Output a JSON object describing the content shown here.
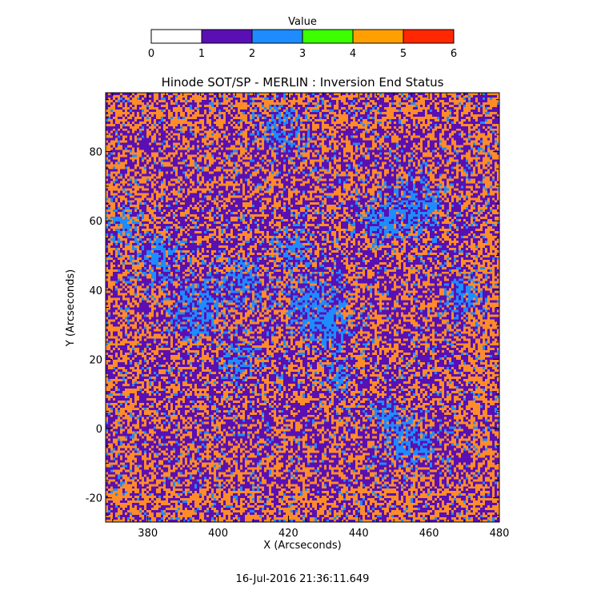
{
  "colorbar": {
    "title": "Value",
    "ticks": [
      0,
      1,
      2,
      3,
      4,
      5,
      6
    ],
    "segments": [
      {
        "from": 0,
        "to": 1,
        "color": "#ffffff"
      },
      {
        "from": 1,
        "to": 2,
        "color": "#5a0fb4"
      },
      {
        "from": 2,
        "to": 3,
        "color": "#1e8cff"
      },
      {
        "from": 3,
        "to": 4,
        "color": "#3cff00"
      },
      {
        "from": 4,
        "to": 5,
        "color": "#ffa000"
      },
      {
        "from": 5,
        "to": 6,
        "color": "#ff2800"
      }
    ]
  },
  "chart_data": {
    "type": "heatmap",
    "title": "Hinode SOT/SP - MERLIN : Inversion End Status",
    "xlabel": "X (Arcseconds)",
    "ylabel": "Y (Arcseconds)",
    "xlim": [
      368,
      480
    ],
    "ylim": [
      -27,
      97
    ],
    "xticks": [
      380,
      400,
      420,
      440,
      460,
      480
    ],
    "yticks": [
      -20,
      0,
      20,
      40,
      60,
      80
    ],
    "values_present": [
      1,
      2,
      4
    ],
    "value_colors": {
      "1": "#5a0fb4",
      "2": "#1e8cff",
      "4": "#ff8c28"
    },
    "grid": false
  },
  "footer": {
    "timestamp": "16-Jul-2016 21:36:11.649"
  }
}
